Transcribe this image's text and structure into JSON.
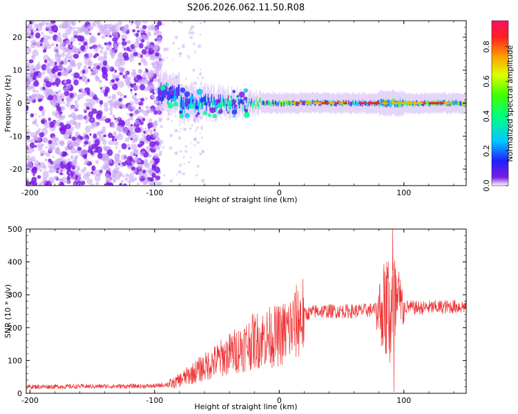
{
  "title": "S206.2026.062.11.50.R08",
  "chart_data": [
    {
      "type": "heatmap",
      "name": "spectrogram",
      "xlabel": "Height of straight line (km)",
      "ylabel": "Frequency (Hz)",
      "xlim": [
        -203,
        150
      ],
      "ylim": [
        -25,
        25
      ],
      "xticks": [
        -200,
        -100,
        0,
        100
      ],
      "xtick_labels": [
        "-200",
        "-100",
        "0",
        "100"
      ],
      "yticks": [
        20,
        10,
        0,
        -10,
        -20
      ],
      "ytick_labels": [
        "20",
        "10",
        "0",
        "-10",
        "-20"
      ],
      "noise_region_x": [
        -203,
        -95
      ],
      "signal_band_center_hz": 0,
      "colorbar": {
        "label": "Normalized spectral amplitude",
        "range": [
          0.0,
          0.95
        ],
        "ticks": [
          0.0,
          0.2,
          0.4,
          0.6,
          0.8
        ],
        "tick_labels": [
          "0.0",
          "0.2",
          "0.4",
          "0.6",
          "0.8"
        ],
        "colormap": "rainbow"
      },
      "colors": {
        "low": "#c9a7f5",
        "mid": "#7b1ce6",
        "high": "#ff2020"
      }
    },
    {
      "type": "line",
      "name": "snr",
      "xlabel": "Height of straight line (km)",
      "ylabel": "SNR (10 * v/v)",
      "xlim": [
        -203,
        150
      ],
      "ylim": [
        0,
        500
      ],
      "xticks": [
        -200,
        -100,
        0,
        100
      ],
      "xtick_labels": [
        "-200",
        "-100",
        "0",
        "100"
      ],
      "yticks": [
        0,
        100,
        200,
        300,
        400,
        500
      ],
      "ytick_labels": [
        "0",
        "100",
        "200",
        "300",
        "400",
        "500"
      ],
      "line_color": "#ee3333",
      "envelope": [
        {
          "x": -203,
          "y": 20
        },
        {
          "x": -100,
          "y": 22
        },
        {
          "x": -85,
          "y": 30
        },
        {
          "x": -75,
          "y": 50
        },
        {
          "x": -60,
          "y": 80
        },
        {
          "x": -50,
          "y": 100
        },
        {
          "x": -40,
          "y": 120
        },
        {
          "x": -30,
          "y": 140
        },
        {
          "x": -20,
          "y": 160
        },
        {
          "x": -10,
          "y": 170
        },
        {
          "x": 0,
          "y": 175
        },
        {
          "x": 10,
          "y": 200
        },
        {
          "x": 20,
          "y": 240
        },
        {
          "x": 30,
          "y": 250
        },
        {
          "x": 60,
          "y": 250
        },
        {
          "x": 80,
          "y": 255
        },
        {
          "x": 88,
          "y": 260
        },
        {
          "x": 95,
          "y": 265
        },
        {
          "x": 110,
          "y": 260
        },
        {
          "x": 150,
          "y": 265
        }
      ],
      "burst_region_x": [
        78,
        100
      ],
      "peak": {
        "x": 91,
        "y": 500
      },
      "trough": {
        "x": 92,
        "y": 5
      }
    }
  ]
}
